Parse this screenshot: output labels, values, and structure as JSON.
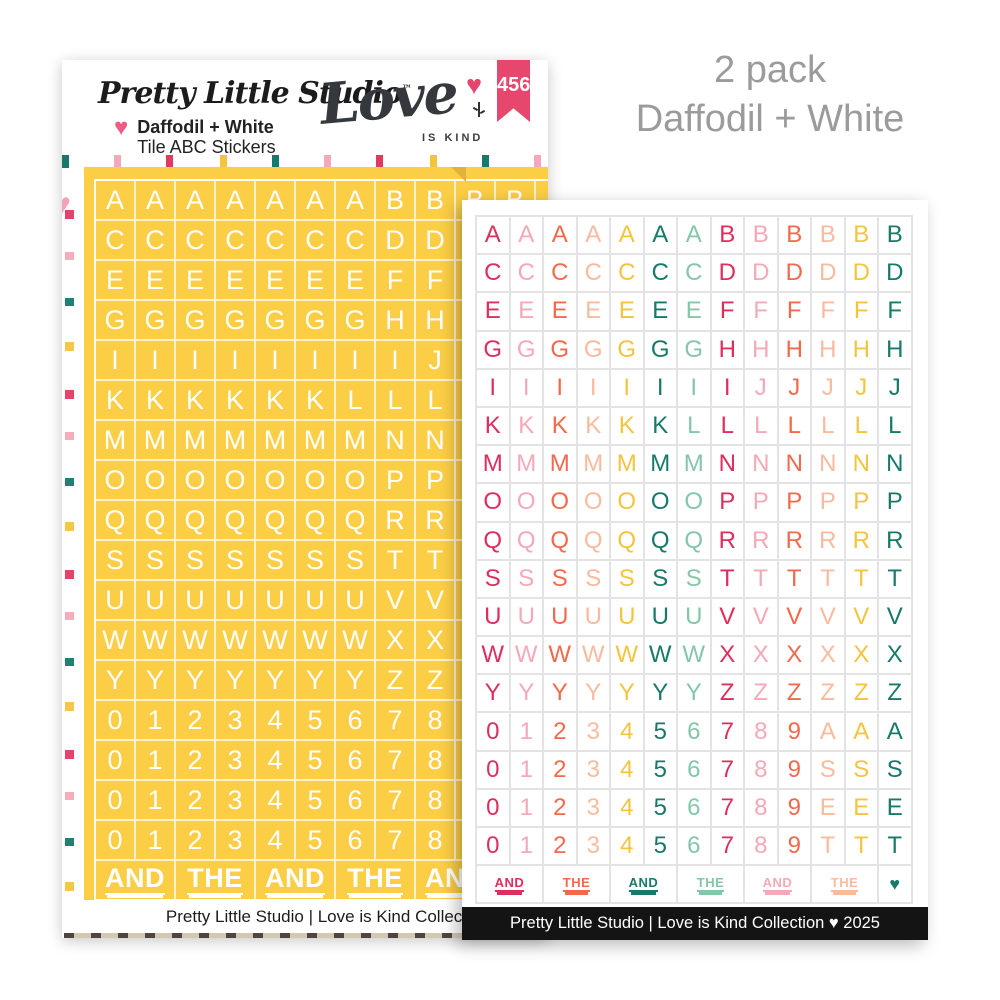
{
  "annotation": {
    "line1": "2 pack",
    "line2": "Daffodil + White",
    "color": "#9b9b9b"
  },
  "header": {
    "brand": "Pretty Little Studio",
    "trademark": "™",
    "product_line1": "Daffodil + White",
    "product_line2": "Tile ABC Stickers",
    "logo_word": "Love",
    "logo_sub": "IS KIND",
    "badge_number": "456",
    "badge_color": "#e5476d",
    "heart_color": "#ee5b83",
    "logo_heart_color": "#e8436b"
  },
  "grid": {
    "columns": 13,
    "rows": [
      "AAAAAAABBBBBB",
      "CCCCCCCDDDDDD",
      "EEEEEEEFFFFFF",
      "GGGGGGGHHHHHH",
      "IIIIIIIIJJJJJ",
      "KKKKKKLLLLLLL",
      "MMMMMMMNNNNNN",
      "OOOOOOOPPPPPP",
      "QQQQQQQRRRRRR",
      "SSSSSSSTTTTTT",
      "UUUUUUUVVVVVV",
      "WWWWWWWXXXXXX",
      "YYYYYYYZZZZZZ",
      "0123456789AAA",
      "0123456789SSS",
      "0123456789EEE",
      "0123456789TTT"
    ],
    "and_row": [
      {
        "text": "AND",
        "span": 2,
        "color_index": 0
      },
      {
        "text": "THE",
        "span": 2,
        "color_index": 2
      },
      {
        "text": "AND",
        "span": 2,
        "color_index": 5
      },
      {
        "text": "THE",
        "span": 2,
        "color_index": 6
      },
      {
        "text": "AND",
        "span": 2,
        "color_index": 1
      },
      {
        "text": "THE",
        "span": 2,
        "color_index": 3
      },
      {
        "text": "♥",
        "span": 1,
        "color_index": 5,
        "is_heart": true
      }
    ]
  },
  "sheets": {
    "footer_text": "Pretty Little Studio  |  Love is Kind Collection  ♥  2025",
    "yellow": {
      "bg": "#fbce45",
      "letter_color": "#ffffff"
    },
    "white": {
      "bg": "#ffffff"
    }
  },
  "palette": [
    "#de2e5c",
    "#f5a9b6",
    "#f3694c",
    "#f9bb9e",
    "#f4c43e",
    "#17796a",
    "#84c7a8"
  ]
}
